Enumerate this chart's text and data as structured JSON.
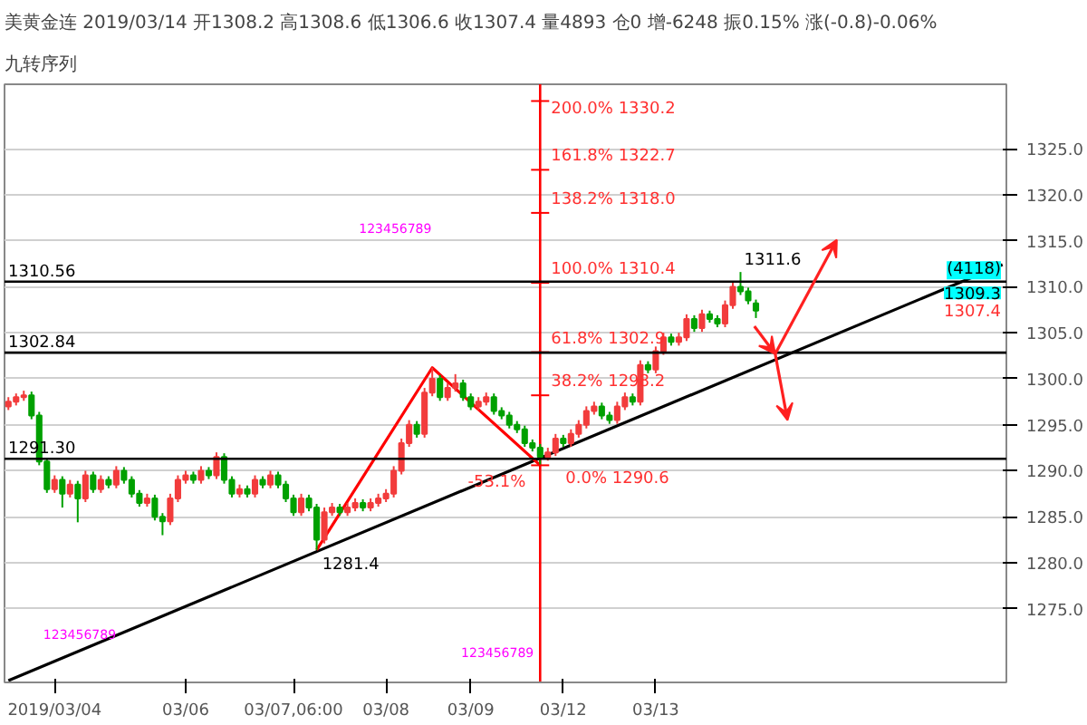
{
  "chart_data": {
    "type": "candlestick",
    "title": "美黄金连 2019/03/14 开1308.2 高1308.6 低1306.6 收1307.4 量4893 仓0 增-6248 振0.15% 涨(-0.8)-0.06%",
    "subtitle": "九转序列",
    "categories": [
      null,
      null,
      null,
      null,
      null,
      null,
      "2019/03/04",
      null,
      null,
      null,
      null,
      null,
      null,
      null,
      null,
      null,
      null,
      null,
      null,
      null,
      null,
      null,
      null,
      "03/06",
      null,
      null,
      null,
      null,
      null,
      null,
      null,
      null,
      null,
      null,
      null,
      null,
      null,
      "03/07,06:00",
      null,
      null,
      null,
      null,
      null,
      null,
      null,
      null,
      null,
      null,
      null,
      "03/08",
      null,
      null,
      null,
      null,
      null,
      null,
      null,
      null,
      null,
      null,
      "03/09",
      null,
      null,
      null,
      null,
      null,
      null,
      null,
      null,
      null,
      null,
      null,
      "03/12",
      null,
      null,
      null,
      null,
      null,
      null,
      null,
      null,
      null,
      null,
      null,
      "03/13",
      null,
      null,
      null,
      null,
      null,
      null,
      null,
      null,
      null,
      null,
      null,
      null,
      null,
      null,
      null,
      null,
      null,
      null,
      null,
      null,
      null,
      null,
      null,
      null,
      null,
      null,
      null,
      null,
      null,
      null,
      null,
      null,
      null,
      null,
      null,
      null,
      null,
      null,
      null,
      null,
      null,
      null,
      null,
      null,
      null
    ],
    "ohlc": [
      [
        1297.0,
        1298.0,
        1296.6,
        1297.5
      ],
      [
        1297.5,
        1298.4,
        1297.1,
        1298.0
      ],
      [
        1298.0,
        1298.7,
        1297.6,
        1298.2
      ],
      [
        1298.2,
        1298.6,
        1295.6,
        1296.0
      ],
      [
        1296.0,
        1296.4,
        1290.6,
        1291.0
      ],
      [
        1291.0,
        1291.4,
        1287.6,
        1288.0
      ],
      [
        1288.0,
        1289.5,
        1287.6,
        1289.0
      ],
      [
        1289.0,
        1289.4,
        1286.0,
        1287.5
      ],
      [
        1287.5,
        1289.0,
        1287.1,
        1288.5
      ],
      [
        1288.5,
        1288.9,
        1284.4,
        1287.0
      ],
      [
        1287.0,
        1290.0,
        1286.6,
        1289.5
      ],
      [
        1289.5,
        1289.9,
        1287.6,
        1288.0
      ],
      [
        1288.0,
        1289.5,
        1287.6,
        1289.0
      ],
      [
        1289.0,
        1289.4,
        1288.1,
        1288.5
      ],
      [
        1288.5,
        1290.5,
        1288.1,
        1290.0
      ],
      [
        1290.0,
        1290.4,
        1288.6,
        1289.0
      ],
      [
        1289.0,
        1289.4,
        1287.1,
        1287.5
      ],
      [
        1287.5,
        1287.9,
        1286.1,
        1286.5
      ],
      [
        1286.5,
        1287.5,
        1286.1,
        1287.0
      ],
      [
        1287.0,
        1287.4,
        1284.6,
        1285.0
      ],
      [
        1285.0,
        1285.4,
        1283.0,
        1284.5
      ],
      [
        1284.5,
        1287.5,
        1284.1,
        1287.0
      ],
      [
        1287.0,
        1289.5,
        1286.6,
        1289.0
      ],
      [
        1289.0,
        1290.0,
        1288.6,
        1289.5
      ],
      [
        1289.5,
        1289.9,
        1288.6,
        1289.0
      ],
      [
        1289.0,
        1290.5,
        1288.6,
        1290.0
      ],
      [
        1290.0,
        1290.4,
        1289.1,
        1289.5
      ],
      [
        1289.5,
        1292.0,
        1289.1,
        1291.5
      ],
      [
        1291.5,
        1291.9,
        1288.6,
        1289.0
      ],
      [
        1289.0,
        1289.4,
        1287.1,
        1287.5
      ],
      [
        1287.5,
        1288.5,
        1287.1,
        1288.0
      ],
      [
        1288.0,
        1288.4,
        1287.1,
        1287.5
      ],
      [
        1287.5,
        1289.5,
        1287.1,
        1289.0
      ],
      [
        1289.0,
        1289.4,
        1288.1,
        1288.5
      ],
      [
        1288.5,
        1290.0,
        1288.1,
        1289.5
      ],
      [
        1289.5,
        1289.9,
        1288.1,
        1288.5
      ],
      [
        1288.5,
        1288.9,
        1286.6,
        1287.0
      ],
      [
        1287.0,
        1287.4,
        1285.1,
        1285.5
      ],
      [
        1285.5,
        1287.5,
        1285.1,
        1287.0
      ],
      [
        1287.0,
        1287.4,
        1285.6,
        1286.0
      ],
      [
        1286.0,
        1286.4,
        1281.4,
        1282.5
      ],
      [
        1282.5,
        1286.0,
        1282.1,
        1285.5
      ],
      [
        1285.5,
        1286.5,
        1285.1,
        1286.0
      ],
      [
        1286.0,
        1286.4,
        1285.1,
        1285.5
      ],
      [
        1285.5,
        1286.5,
        1285.1,
        1286.0
      ],
      [
        1286.0,
        1287.0,
        1285.6,
        1286.5
      ],
      [
        1286.5,
        1286.9,
        1285.6,
        1286.0
      ],
      [
        1286.0,
        1287.0,
        1285.6,
        1286.5
      ],
      [
        1286.5,
        1287.5,
        1286.1,
        1287.0
      ],
      [
        1287.0,
        1288.0,
        1286.6,
        1287.5
      ],
      [
        1287.5,
        1290.5,
        1287.1,
        1290.0
      ],
      [
        1290.0,
        1293.5,
        1289.6,
        1293.0
      ],
      [
        1293.0,
        1295.5,
        1292.6,
        1295.0
      ],
      [
        1295.0,
        1295.4,
        1293.6,
        1294.0
      ],
      [
        1294.0,
        1299.0,
        1293.6,
        1298.5
      ],
      [
        1298.5,
        1301.2,
        1298.1,
        1300.0
      ],
      [
        1300.0,
        1300.4,
        1297.6,
        1298.0
      ],
      [
        1298.0,
        1299.5,
        1297.6,
        1299.0
      ],
      [
        1299.0,
        1300.5,
        1298.6,
        1299.5
      ],
      [
        1299.5,
        1299.9,
        1297.6,
        1298.0
      ],
      [
        1298.0,
        1298.4,
        1296.6,
        1297.0
      ],
      [
        1297.0,
        1298.0,
        1296.6,
        1297.5
      ],
      [
        1297.5,
        1298.5,
        1297.1,
        1298.0
      ],
      [
        1298.0,
        1298.4,
        1296.1,
        1296.5
      ],
      [
        1296.5,
        1296.9,
        1295.6,
        1296.0
      ],
      [
        1296.0,
        1296.4,
        1294.6,
        1295.0
      ],
      [
        1295.0,
        1295.4,
        1294.1,
        1294.5
      ],
      [
        1294.5,
        1294.9,
        1292.6,
        1293.0
      ],
      [
        1293.0,
        1293.4,
        1292.1,
        1292.5
      ],
      [
        1292.5,
        1292.9,
        1290.6,
        1291.5
      ],
      [
        1291.5,
        1292.5,
        1291.1,
        1292.0
      ],
      [
        1292.0,
        1294.0,
        1291.6,
        1293.5
      ],
      [
        1293.5,
        1293.9,
        1292.6,
        1293.0
      ],
      [
        1293.0,
        1294.5,
        1292.6,
        1294.0
      ],
      [
        1294.0,
        1295.5,
        1293.6,
        1295.0
      ],
      [
        1295.0,
        1297.0,
        1294.6,
        1296.5
      ],
      [
        1296.5,
        1297.5,
        1296.1,
        1297.0
      ],
      [
        1297.0,
        1297.4,
        1295.6,
        1296.0
      ],
      [
        1296.0,
        1296.4,
        1295.1,
        1295.5
      ],
      [
        1295.5,
        1297.5,
        1295.1,
        1297.0
      ],
      [
        1297.0,
        1298.5,
        1296.6,
        1298.0
      ],
      [
        1298.0,
        1298.4,
        1297.1,
        1297.5
      ],
      [
        1297.5,
        1302.0,
        1297.1,
        1301.5
      ],
      [
        1301.5,
        1301.9,
        1300.6,
        1301.0
      ],
      [
        1301.0,
        1303.5,
        1300.6,
        1303.0
      ],
      [
        1303.0,
        1305.0,
        1302.6,
        1304.5
      ],
      [
        1304.5,
        1304.9,
        1303.6,
        1304.0
      ],
      [
        1304.0,
        1305.0,
        1303.6,
        1304.5
      ],
      [
        1304.5,
        1307.0,
        1304.1,
        1306.5
      ],
      [
        1306.5,
        1306.9,
        1305.1,
        1305.5
      ],
      [
        1305.5,
        1307.5,
        1305.1,
        1307.0
      ],
      [
        1307.0,
        1307.4,
        1306.1,
        1306.5
      ],
      [
        1306.5,
        1306.9,
        1305.6,
        1306.0
      ],
      [
        1306.0,
        1308.5,
        1305.6,
        1308.0
      ],
      [
        1308.0,
        1310.5,
        1307.6,
        1310.0
      ],
      [
        1310.0,
        1311.6,
        1309.1,
        1309.5
      ],
      [
        1309.5,
        1309.9,
        1308.1,
        1308.5
      ],
      [
        1308.2,
        1308.6,
        1306.6,
        1307.4
      ],
      null,
      null,
      null,
      null,
      null,
      null,
      null,
      null,
      null,
      null,
      null,
      null,
      null,
      null,
      null,
      null,
      null,
      null,
      null,
      null,
      null,
      null,
      null,
      null,
      null,
      null,
      null,
      null,
      null,
      null,
      null,
      null
    ],
    "colors": [
      "#f23c3c",
      "#f23c3c",
      "#f23c3c",
      "#00a000",
      "#00a000",
      "#00a000",
      "#f23c3c",
      "#00a000",
      "#f23c3c",
      "#00a000",
      "#f23c3c",
      "#00a000",
      "#f23c3c",
      "#00a000",
      "#f23c3c",
      "#00a000",
      "#00a000",
      "#00a000",
      "#f23c3c",
      "#00a000",
      "#00a000",
      "#f23c3c",
      "#f23c3c",
      "#f23c3c",
      "#00a000",
      "#f23c3c",
      "#00a000",
      "#f23c3c",
      "#00a000",
      "#00a000",
      "#f23c3c",
      "#00a000",
      "#f23c3c",
      "#00a000",
      "#f23c3c",
      "#00a000",
      "#00a000",
      "#00a000",
      "#f23c3c",
      "#00a000",
      "#00a000",
      "#f23c3c",
      "#f23c3c",
      "#00a000",
      "#f23c3c",
      "#f23c3c",
      "#00a000",
      "#f23c3c",
      "#f23c3c",
      "#f23c3c",
      "#f23c3c",
      "#f23c3c",
      "#f23c3c",
      "#00a000",
      "#f23c3c",
      "#f23c3c",
      "#00a000",
      "#f23c3c",
      "#f23c3c",
      "#00a000",
      "#00a000",
      "#f23c3c",
      "#f23c3c",
      "#00a000",
      "#00a000",
      "#00a000",
      "#00a000",
      "#00a000",
      "#00a000",
      "#00a000",
      "#f23c3c",
      "#f23c3c",
      "#00a000",
      "#f23c3c",
      "#f23c3c",
      "#f23c3c",
      "#f23c3c",
      "#00a000",
      "#00a000",
      "#f23c3c",
      "#f23c3c",
      "#00a000",
      "#f23c3c",
      "#00a000",
      "#f23c3c",
      "#f23c3c",
      "#00a000",
      "#f23c3c",
      "#f23c3c",
      "#00a000",
      "#f23c3c",
      "#00a000",
      "#00a000",
      "#f23c3c",
      "#f23c3c",
      "#00a000",
      "#00a000",
      "#00a000",
      null,
      null,
      null,
      null,
      null,
      null,
      null,
      null,
      null,
      null,
      null,
      null,
      null,
      null,
      null,
      null,
      null,
      null,
      null,
      null,
      null,
      null,
      null,
      null,
      null,
      null,
      null,
      null,
      null,
      null,
      null,
      null
    ],
    "series": [
      {
        "type": "line",
        "color": "#000000",
        "values": [
          1267.2,
          null,
          null,
          null,
          null,
          null,
          null,
          null,
          null,
          null,
          null,
          null,
          null,
          null,
          null,
          null,
          null,
          null,
          null,
          null,
          null,
          null,
          null,
          null,
          null,
          null,
          null,
          null,
          null,
          null,
          null,
          null,
          null,
          null,
          null,
          null,
          null,
          null,
          null,
          null,
          null,
          null,
          null,
          null,
          null,
          null,
          null,
          null,
          null,
          null,
          null,
          null,
          null,
          null,
          null,
          null,
          null,
          null,
          null,
          null,
          null,
          null,
          null,
          null,
          null,
          null,
          null,
          null,
          null,
          null,
          null,
          null,
          null,
          null,
          null,
          null,
          null,
          null,
          null,
          null,
          null,
          null,
          null,
          null,
          null,
          null,
          null,
          null,
          null,
          null,
          null,
          null,
          null,
          null,
          null,
          null,
          null,
          null,
          null,
          null,
          null,
          null,
          null,
          null,
          null,
          null,
          null,
          null,
          null,
          null,
          null,
          null,
          null,
          null,
          null,
          null,
          null,
          null,
          null,
          null,
          null,
          null,
          null,
          null,
          null,
          null,
          null,
          null,
          null,
          1312.4
        ]
      },
      {
        "type": "line",
        "color": "#ff0000",
        "values": [
          null,
          null,
          null,
          null,
          null,
          null,
          null,
          null,
          null,
          null,
          null,
          null,
          null,
          null,
          null,
          null,
          null,
          null,
          null,
          null,
          null,
          null,
          null,
          null,
          null,
          null,
          null,
          null,
          null,
          null,
          null,
          null,
          null,
          null,
          null,
          null,
          null,
          null,
          null,
          null,
          1281.4,
          null,
          null,
          null,
          null,
          null,
          null,
          null,
          null,
          null,
          null,
          null,
          null,
          null,
          null,
          1301.2,
          null,
          null,
          null,
          null,
          null,
          null,
          null,
          null,
          null,
          null,
          null,
          null,
          null,
          1290.6,
          null,
          null,
          null,
          null,
          null,
          null,
          null,
          null,
          null,
          null,
          null,
          null,
          null,
          null,
          null,
          null,
          null,
          null,
          null,
          null,
          null,
          null,
          null,
          null,
          null,
          null,
          null,
          null,
          null,
          null,
          null,
          null,
          null,
          null,
          null,
          null,
          null,
          null,
          null,
          null,
          null,
          null,
          null,
          null,
          null,
          null,
          null,
          null,
          null,
          null,
          null,
          null,
          null,
          null,
          null,
          null,
          null,
          null,
          null,
          null
        ]
      }
    ],
    "ref_lines": [
      {
        "axis": "y",
        "value": 1310.56,
        "label": "1310.56",
        "color": "#000000"
      },
      {
        "axis": "y",
        "value": 1302.84,
        "label": "1302.84",
        "color": "#000000"
      },
      {
        "axis": "y",
        "value": 1291.3,
        "label": "1291.30",
        "color": "#000000"
      }
    ],
    "annotations": [
      "200.0% 1330.2",
      "161.8% 1322.7",
      "138.2% 1318.0",
      "100.0% 1310.4",
      "61.8% 1302.9",
      "38.2% 1298.2",
      "0.0% 1290.6",
      "-53.1%",
      "1311.6",
      "1281.4",
      "123456789",
      "123456789",
      "123456789",
      "(4118)",
      "1309.3",
      "1307.4"
    ],
    "ylim": [
      1267,
      1332
    ],
    "yticks": [
      {
        "value": 1275,
        "label": "1275.0"
      },
      {
        "value": 1280,
        "label": "1280.0"
      },
      {
        "value": 1285,
        "label": "1285.0"
      },
      {
        "value": 1290,
        "label": "1290.0"
      },
      {
        "value": 1295,
        "label": "1295.0"
      },
      {
        "value": 1300,
        "label": "1300.0"
      },
      {
        "value": 1305,
        "label": "1305.0"
      },
      {
        "value": 1310,
        "label": "1310.0"
      },
      {
        "value": 1315,
        "label": "1315.0"
      },
      {
        "value": 1320,
        "label": "1320.0"
      },
      {
        "value": 1325,
        "label": "1325.0"
      }
    ],
    "grid": "y"
  }
}
